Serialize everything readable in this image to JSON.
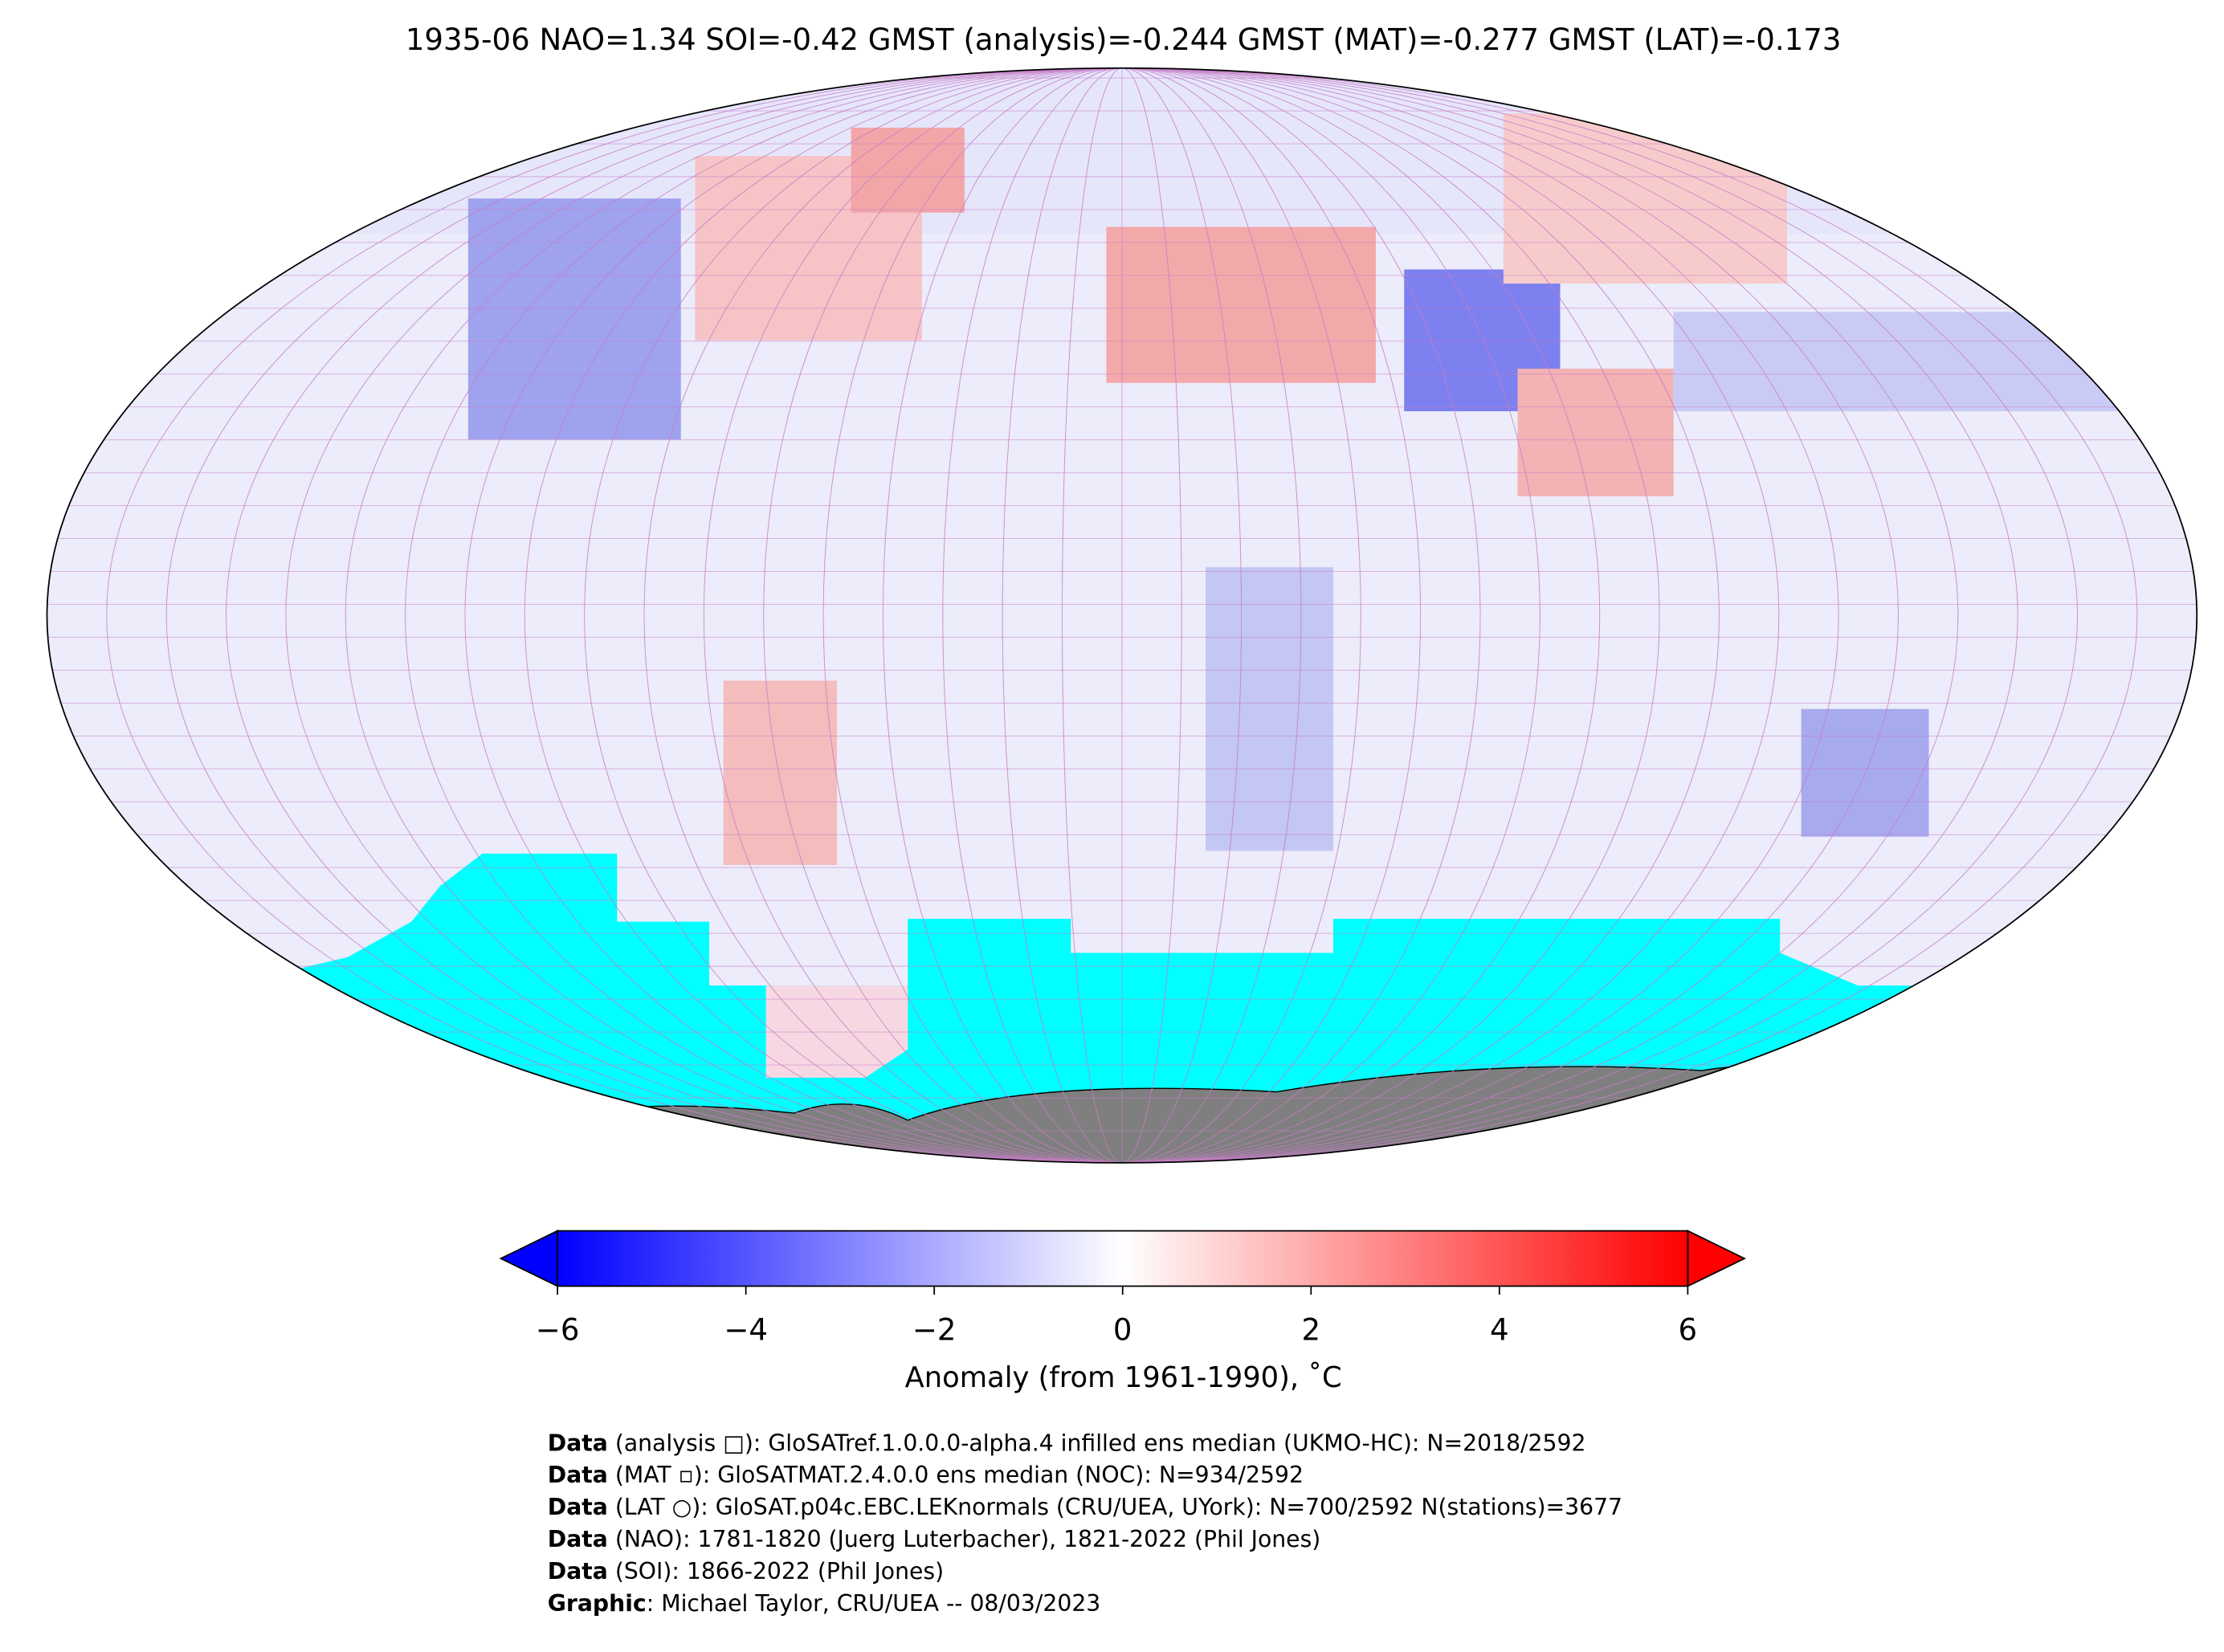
{
  "title": "1935-06 NAO=1.34 SOI=-0.42 GMST (analysis)=-0.244 GMST (MAT)=-0.277 GMST (LAT)=-0.173",
  "colorbar": {
    "label": "Anomaly (from 1961-1990), ˚C",
    "range": [
      -6,
      6
    ],
    "ticks": [
      {
        "value": -6,
        "label": "−6"
      },
      {
        "value": -4,
        "label": "−4"
      },
      {
        "value": -2,
        "label": "−2"
      },
      0,
      2,
      4,
      6
    ],
    "colors": [
      "#0000ff",
      "#ffffff",
      "#ff0000"
    ]
  },
  "credits": [
    {
      "key": "Data",
      "text": " (analysis □): GloSATref.1.0.0.0-alpha.4 infilled ens median (UKMO-HC): N=2018/2592"
    },
    {
      "key": "Data",
      "text": " (MAT ▫): GloSATMAT.2.4.0.0 ens median (NOC): N=934/2592"
    },
    {
      "key": "Data",
      "text": " (LAT ○): GloSAT.p04c.EBC.LEKnormals (CRU/UEA, UYork): N=700/2592 N(stations)=3677"
    },
    {
      "key": "Data",
      "text": " (NAO): 1781-1820 (Juerg Luterbacher), 1821-2022 (Phil Jones)"
    },
    {
      "key": "Data",
      "text": " (SOI): 1866-2022 (Phil Jones)"
    },
    {
      "key": "Graphic",
      "text": ": Michael Taylor, CRU/UEA -- 08/03/2023"
    }
  ]
}
